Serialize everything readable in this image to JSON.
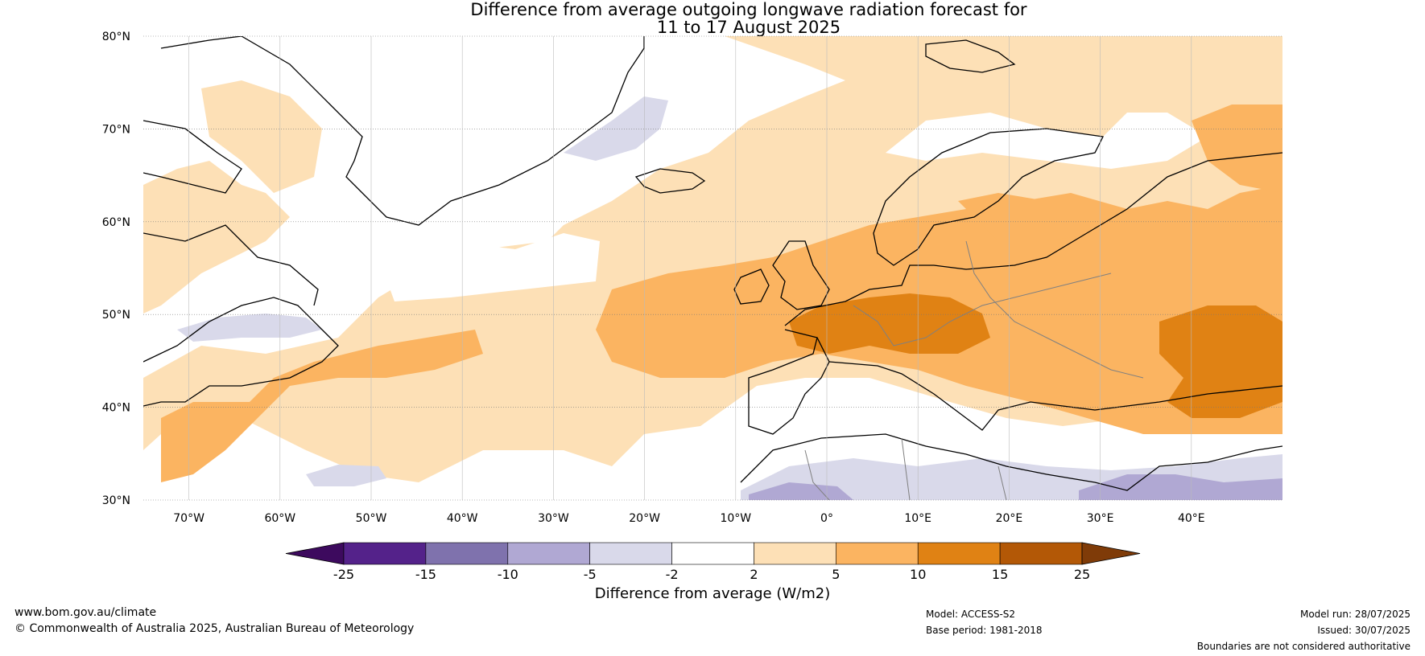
{
  "title": {
    "line1": "Difference from average outgoing longwave radiation forecast for",
    "line2": "11 to 17 August 2025"
  },
  "map": {
    "lat_labels": [
      "80°N",
      "70°N",
      "60°N",
      "50°N",
      "40°N",
      "30°N"
    ],
    "lon_labels": [
      "70°W",
      "60°W",
      "50°W",
      "40°W",
      "30°W",
      "20°W",
      "10°W",
      "0°",
      "10°E",
      "20°E",
      "30°E",
      "40°E"
    ],
    "lat_range": [
      30,
      80
    ],
    "lon_range": [
      -75,
      50
    ]
  },
  "colorbar": {
    "ticks": [
      "-25",
      "-15",
      "-10",
      "-5",
      "-2",
      "2",
      "5",
      "10",
      "15",
      "25"
    ],
    "colors": [
      "#3d0a5e",
      "#54228a",
      "#7f72ad",
      "#b0a8d3",
      "#d9d9ea",
      "#ffffff",
      "#fde0b6",
      "#fbb461",
      "#e08214",
      "#b35806",
      "#7f3b08"
    ],
    "label": "Difference from average (W/m2)"
  },
  "footer": {
    "url": "www.bom.gov.au/climate",
    "copyright": "© Commonwealth of Australia 2025, Australian Bureau of Meteorology",
    "model": "Model: ACCESS-S2",
    "base_period": "Base period: 1981-2018",
    "model_run": "Model run: 28/07/2025",
    "issued": "Issued: 30/07/2025",
    "disclaimer": "Boundaries are not considered authoritative"
  }
}
